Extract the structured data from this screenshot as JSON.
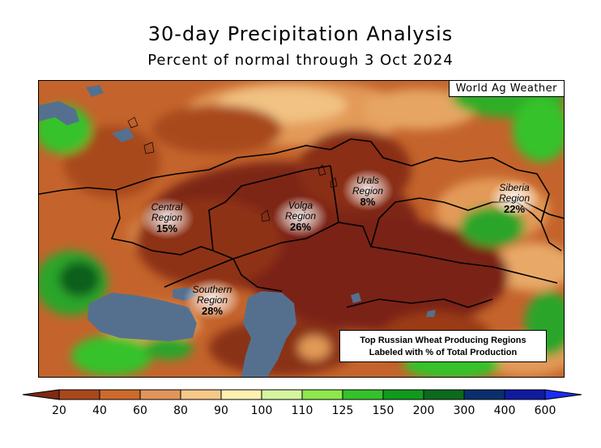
{
  "title": "30-day Precipitation Analysis",
  "subtitle": "Percent of normal through 3 Oct 2024",
  "credit": "World Ag Weather",
  "regions": [
    {
      "name_line1": "Central",
      "name_line2": "Region",
      "percent": "15%"
    },
    {
      "name_line1": "Volga",
      "name_line2": "Region",
      "percent": "26%"
    },
    {
      "name_line1": "Urals",
      "name_line2": "Region",
      "percent": "8%"
    },
    {
      "name_line1": "Siberia",
      "name_line2": "Region",
      "percent": "22%"
    },
    {
      "name_line1": "Southern",
      "name_line2": "Region",
      "percent": "28%"
    }
  ],
  "note": {
    "line1": "Top Russian Wheat Producing Regions",
    "line2": "Labeled with % of Total Production"
  },
  "legend": {
    "ticks": [
      "20",
      "40",
      "60",
      "80",
      "90",
      "100",
      "110",
      "125",
      "150",
      "200",
      "300",
      "400",
      "600"
    ],
    "colors": [
      "#7f2a10",
      "#a8481c",
      "#cd6a2c",
      "#e0955a",
      "#f6c88a",
      "#fdf0b0",
      "#d6f5a0",
      "#8ee84c",
      "#35c22a",
      "#119a1c",
      "#0b6a1c",
      "#0a2f6e",
      "#101aa0",
      "#1a2ef0"
    ]
  },
  "map_colors": {
    "water": "#55708e",
    "deep_dry": "#7a2412",
    "dry": "#a3441a",
    "mid_dry": "#c8642a",
    "light_dry": "#de9350",
    "near_normal": "#f3c585",
    "wet": "#33b52c",
    "very_wet": "#0e5e1a",
    "extreme_wet": "#0d2b73"
  }
}
